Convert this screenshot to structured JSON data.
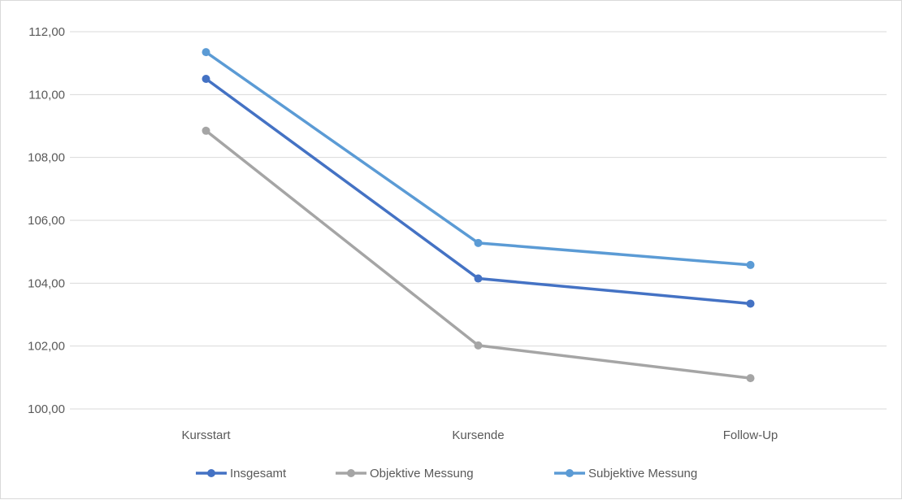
{
  "chart_data": {
    "type": "line",
    "title": "",
    "xlabel": "",
    "ylabel": "",
    "categories": [
      "Kursstart",
      "Kursende",
      "Follow-Up"
    ],
    "ylim": [
      100,
      112
    ],
    "yticks": [
      "100,00",
      "102,00",
      "104,00",
      "106,00",
      "108,00",
      "110,00",
      "112,00"
    ],
    "grid": true,
    "legend_position": "bottom",
    "series": [
      {
        "name": "Insgesamt",
        "color": "#4472C4",
        "values": [
          110.5,
          104.15,
          103.35
        ]
      },
      {
        "name": "Objektive Messung",
        "color": "#A5A5A5",
        "values": [
          108.85,
          102.02,
          100.98
        ]
      },
      {
        "name": "Subjektive Messung",
        "color": "#5B9BD5",
        "values": [
          111.35,
          105.28,
          104.58
        ]
      }
    ]
  }
}
